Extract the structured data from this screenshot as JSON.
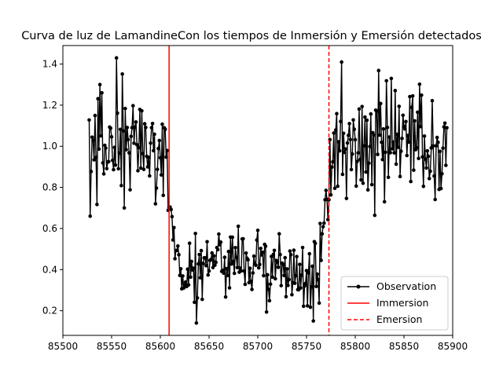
{
  "chart_data": {
    "type": "line",
    "title": "Curva de luz de LamandineCon los tiempos de Inmersión y Emersión detectados",
    "xlabel": "",
    "ylabel": "",
    "xlim": [
      85500,
      85900
    ],
    "ylim": [
      0.08,
      1.49
    ],
    "xticks": [
      85500,
      85550,
      85600,
      85650,
      85700,
      85750,
      85800,
      85850,
      85900
    ],
    "yticks": [
      0.2,
      0.4,
      0.6,
      0.8,
      1.0,
      1.2,
      1.4
    ],
    "grid": false,
    "legend_position": "lower-right",
    "series": [
      {
        "name": "Observation",
        "color": "#000000",
        "marker": "dot",
        "x_start": 85527,
        "x_end": 85894,
        "x_step": 1,
        "segments": [
          {
            "x_from": 85527,
            "x_to": 85607,
            "mean": 1.0,
            "spread": 0.13
          },
          {
            "x_from": 85607,
            "x_to": 85618,
            "mean_from": 0.82,
            "mean_to": 0.43,
            "spread": 0.09
          },
          {
            "x_from": 85618,
            "x_to": 85640,
            "mean": 0.38,
            "spread": 0.08
          },
          {
            "x_from": 85640,
            "x_to": 85705,
            "mean": 0.45,
            "spread": 0.09
          },
          {
            "x_from": 85705,
            "x_to": 85763,
            "mean": 0.38,
            "spread": 0.09
          },
          {
            "x_from": 85763,
            "x_to": 85776,
            "mean_from": 0.42,
            "mean_to": 0.9,
            "spread": 0.09
          },
          {
            "x_from": 85776,
            "x_to": 85894,
            "mean": 1.0,
            "spread": 0.13
          }
        ],
        "peaks": [
          {
            "x": 85555,
            "y": 1.43
          },
          {
            "x": 85538,
            "y": 1.3
          },
          {
            "x": 85528,
            "y": 0.66
          },
          {
            "x": 85563,
            "y": 0.7
          },
          {
            "x": 85637,
            "y": 0.14
          },
          {
            "x": 85757,
            "y": 0.15
          },
          {
            "x": 85773,
            "y": 0.74
          },
          {
            "x": 85786,
            "y": 1.41
          },
          {
            "x": 85837,
            "y": 1.33
          },
          {
            "x": 85830,
            "y": 0.73
          }
        ]
      },
      {
        "name": "Immersion",
        "color": "#ff0000",
        "style": "solid",
        "x": 85609
      },
      {
        "name": "Emersion",
        "color": "#ff0000",
        "style": "dashed",
        "x": 85773
      }
    ]
  }
}
